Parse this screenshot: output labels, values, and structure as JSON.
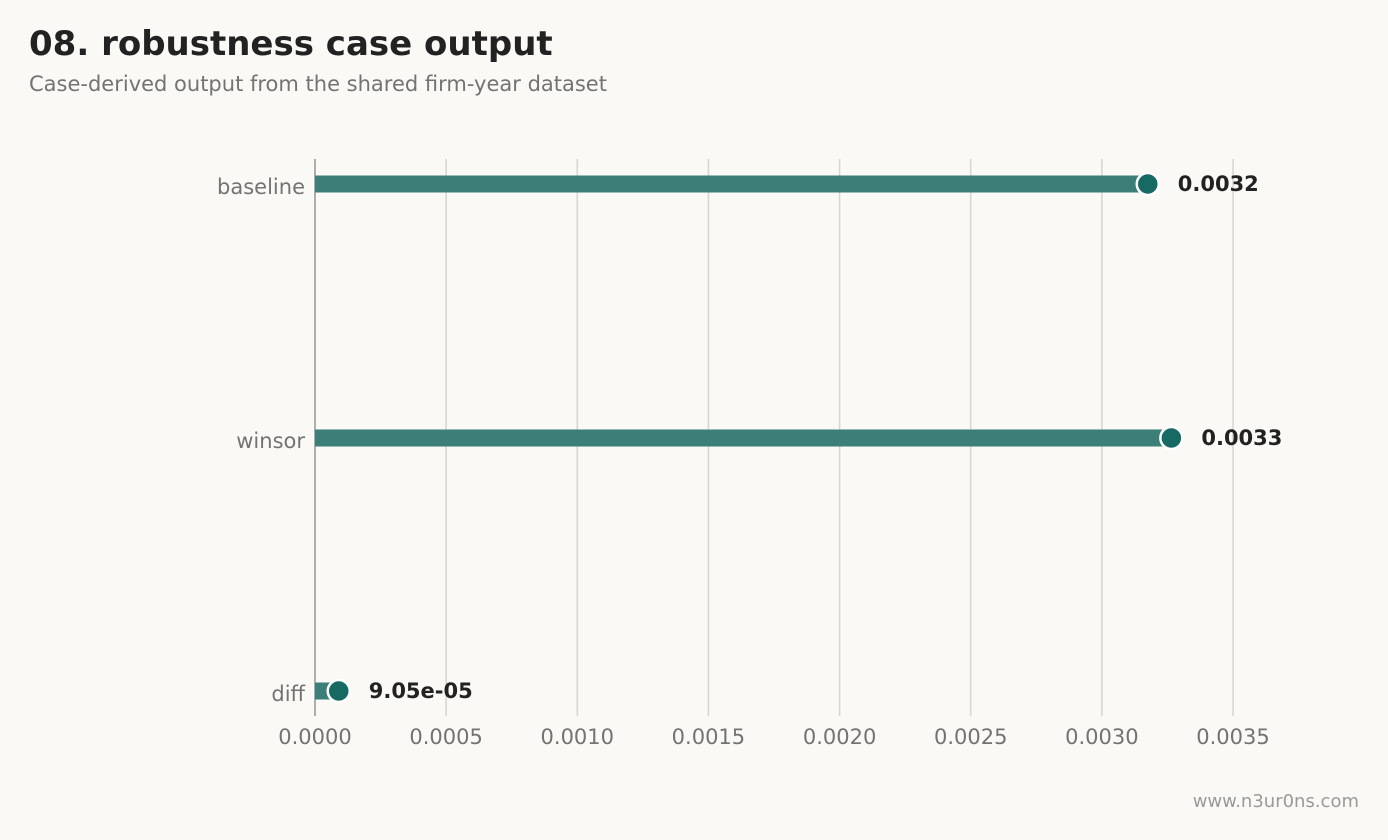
{
  "header": {
    "title": "08. robustness case output",
    "subtitle": "Case-derived output from the shared firm-year dataset"
  },
  "footer": {
    "credit": "www.n3ur0ns.com"
  },
  "colors": {
    "background": "#faf9f5",
    "bar": "#3c7f78",
    "dot": "#176a63",
    "grid": "#d9d7d0",
    "axis": "#9a9a9a"
  },
  "chart_data": {
    "type": "bar",
    "orientation": "horizontal",
    "style": "lollipop",
    "title": "08. robustness case output",
    "subtitle": "Case-derived output from the shared firm-year dataset",
    "xlabel": "",
    "ylabel": "",
    "categories": [
      "baseline",
      "winsor",
      "diff"
    ],
    "values": [
      0.003175,
      0.003265,
      9.05e-05
    ],
    "value_labels": [
      "0.0032",
      "0.0033",
      "9.05e-05"
    ],
    "xlim": [
      0,
      0.0037
    ],
    "xticks": [
      0.0,
      0.0005,
      0.001,
      0.0015,
      0.002,
      0.0025,
      0.003,
      0.0035
    ],
    "xtick_labels": [
      "0.0000",
      "0.0005",
      "0.0010",
      "0.0015",
      "0.0020",
      "0.0025",
      "0.0030",
      "0.0035"
    ],
    "grid": "vertical",
    "legend": "none"
  }
}
